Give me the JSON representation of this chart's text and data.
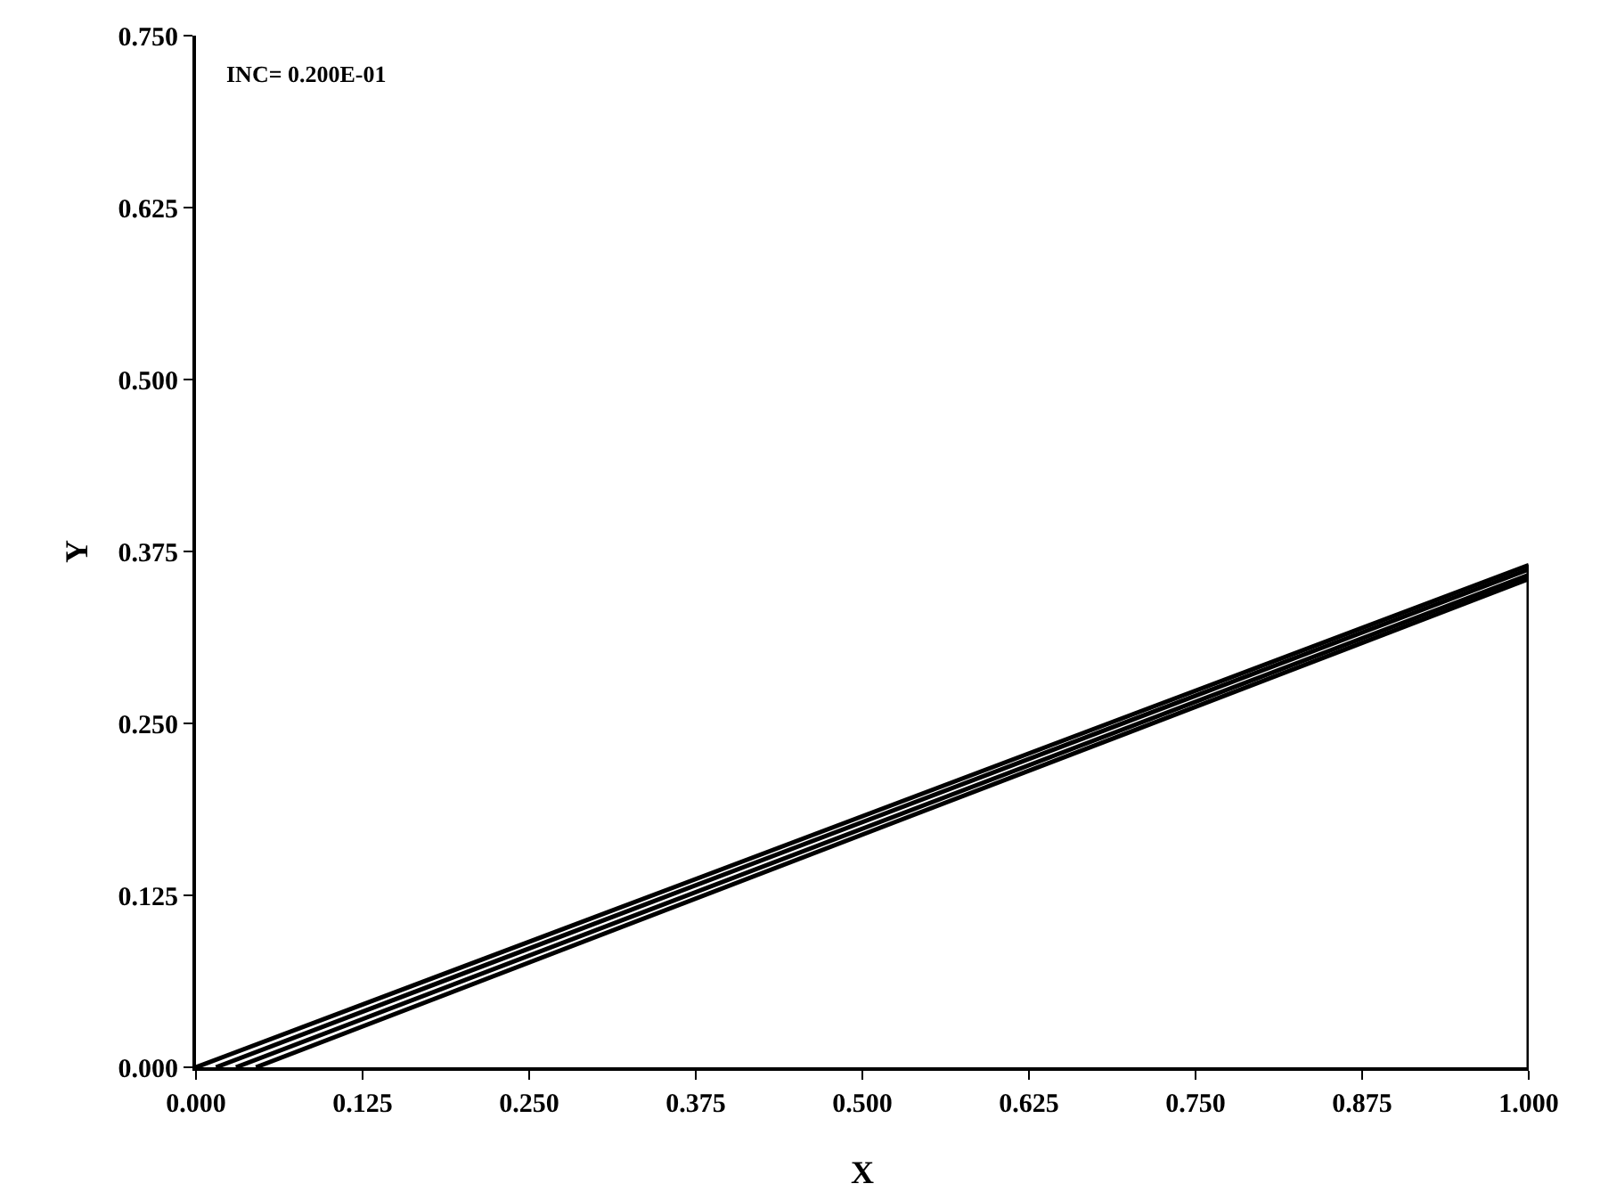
{
  "chart_data": {
    "type": "line",
    "xlabel": "X",
    "ylabel": "Y",
    "annotations": [
      "INC= 0.200E-01"
    ],
    "series": [
      {
        "color": "#000000",
        "x": [
          0,
          1
        ],
        "values": [
          0,
          0.365
        ]
      },
      {
        "color": "#000000",
        "x": [
          0.015,
          1
        ],
        "values": [
          0,
          0.362
        ]
      },
      {
        "color": "#000000",
        "x": [
          0.03,
          1
        ],
        "values": [
          0,
          0.358
        ]
      },
      {
        "color": "#000000",
        "x": [
          0.045,
          1
        ],
        "values": [
          0,
          0.355
        ]
      },
      {
        "color": "#000000",
        "x": [
          1,
          1
        ],
        "values": [
          0,
          0.365
        ]
      }
    ],
    "xlim": [
      0,
      1
    ],
    "ylim": [
      0,
      0.75
    ],
    "xticks": [
      {
        "value": 0,
        "label": "0.000"
      },
      0.125,
      {
        "value": 0.25,
        "label": "0.250"
      },
      0.375,
      {
        "value": 0.5,
        "label": "0.500"
      },
      0.625,
      {
        "value": 0.75,
        "label": "0.750"
      },
      0.875,
      {
        "value": 1,
        "label": "1.000"
      }
    ],
    "yticks": [
      {
        "value": 0,
        "label": "0.000"
      },
      0.125,
      {
        "value": 0.25,
        "label": "0.250"
      },
      0.375,
      {
        "value": 0.5,
        "label": "0.500"
      },
      0.625,
      {
        "value": 0.75,
        "label": "0.750"
      }
    ],
    "grid": false,
    "marker": "none",
    "line_style": "solid"
  }
}
